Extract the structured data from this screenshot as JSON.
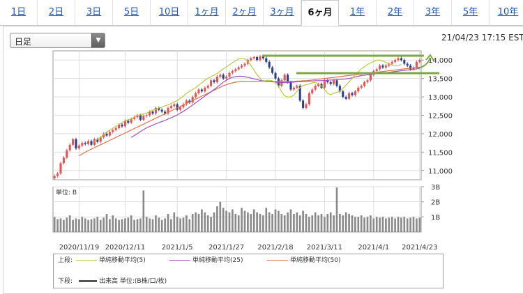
{
  "tabs": [
    {
      "label": "1日",
      "active": false
    },
    {
      "label": "2日",
      "active": false
    },
    {
      "label": "3日",
      "active": false
    },
    {
      "label": "5日",
      "active": false
    },
    {
      "label": "10日",
      "active": false
    },
    {
      "label": "1ヶ月",
      "active": false
    },
    {
      "label": "2ヶ月",
      "active": false
    },
    {
      "label": "3ヶ月",
      "active": false
    },
    {
      "label": "6ヶ月",
      "active": true
    },
    {
      "label": "1年",
      "active": false
    },
    {
      "label": "2年",
      "active": false
    },
    {
      "label": "3年",
      "active": false
    },
    {
      "label": "5年",
      "active": false
    },
    {
      "label": "10年",
      "active": false
    }
  ],
  "controls": {
    "interval_label": "日足",
    "timestamp": "21/04/23 17:15 EST"
  },
  "colors": {
    "up": "#e8524f",
    "down": "#2b3f8c",
    "ma5": "#b7c93c",
    "ma25": "#a24ec4",
    "ma50": "#e0714a",
    "volume": "#8a8a8a",
    "annotation": "#7ea844"
  },
  "legend": {
    "top_label": "上段:",
    "ma5": "単純移動平均(5)",
    "ma25": "単純移動平均(25)",
    "ma50": "単純移動平均(50)",
    "bottom_label": "下段:",
    "volume": "出来高 単位:(B株/口/枚)"
  },
  "chart_data": [
    {
      "type": "candlestick",
      "name": "price",
      "ylim": [
        10750,
        14250
      ],
      "yticks": [
        11000,
        11500,
        12000,
        12500,
        13000,
        13500,
        14000
      ],
      "ytick_labels": [
        "11,000",
        "11,500",
        "12,000",
        "12,500",
        "13,000",
        "13,500",
        "14,000"
      ],
      "xtick_labels": [
        "2020/11/19",
        "2020/12/11",
        "2021/1/5",
        "2021/1/27",
        "2021/2/18",
        "2021/3/11",
        "2021/4/1",
        "2021/4/23"
      ],
      "xtick_index": [
        8,
        23,
        40,
        56,
        72,
        88,
        104,
        119
      ],
      "close": [
        10850,
        10920,
        11200,
        11350,
        11550,
        11700,
        11850,
        11600,
        11680,
        11750,
        11720,
        11800,
        11700,
        11850,
        11780,
        11900,
        12000,
        11950,
        12050,
        12100,
        12150,
        12250,
        12200,
        12350,
        12300,
        12400,
        12450,
        12500,
        12380,
        12480,
        12500,
        12600,
        12550,
        12700,
        12650,
        12600,
        12550,
        12700,
        12750,
        12800,
        12650,
        12720,
        12800,
        12900,
        12850,
        13000,
        13100,
        13200,
        13150,
        13250,
        13300,
        13450,
        13400,
        13550,
        13600,
        13500,
        13550,
        13650,
        13700,
        13750,
        13800,
        13850,
        13900,
        14000,
        14050,
        14080,
        14000,
        14100,
        14050,
        13950,
        13800,
        13650,
        13500,
        13300,
        13450,
        13600,
        13400,
        13200,
        13250,
        13300,
        12900,
        12700,
        12800,
        13100,
        13200,
        13300,
        13350,
        13250,
        13450,
        13400,
        13350,
        13450,
        13300,
        13150,
        13000,
        12950,
        13100,
        13050,
        13150,
        13250,
        13300,
        13400,
        13450,
        13600,
        13700,
        13750,
        13850,
        13800,
        13850,
        13900,
        13950,
        14000,
        14050,
        14000,
        13900,
        13850,
        13750,
        13800,
        13950,
        14000
      ],
      "ma5_start": 13,
      "ma5": [
        11790,
        11850,
        11900,
        11980,
        12050,
        12100,
        12150,
        12200,
        12250,
        12300,
        12350,
        12380,
        12400,
        12450,
        12500,
        12510,
        12540,
        12560,
        12600,
        12640,
        12660,
        12700,
        12720,
        12760,
        12780,
        12820,
        12870,
        12900,
        12960,
        13020,
        13100,
        13150,
        13200,
        13250,
        13320,
        13380,
        13450,
        13500,
        13550,
        13590,
        13640,
        13700,
        13760,
        13810,
        13870,
        13930,
        13980,
        14030,
        14050,
        14030,
        13960,
        13860,
        13730,
        13600,
        13500,
        13420,
        13450,
        13450,
        13440,
        13380,
        13300,
        13140,
        13030,
        13000,
        13000,
        13050,
        13150,
        13250,
        13310,
        13330,
        13350,
        13380,
        13400,
        13350,
        13300,
        13200,
        13100,
        13060,
        13100,
        13120,
        13160,
        13230,
        13320,
        13410,
        13500,
        13600,
        13680,
        13760,
        13820,
        13880,
        13920,
        13960,
        13990,
        14000,
        13970,
        13940,
        13890,
        13860,
        13840,
        13850,
        13880
      ],
      "ma25_start": 25,
      "ma25": [
        11900,
        11950,
        12000,
        12060,
        12110,
        12160,
        12200,
        12230,
        12270,
        12300,
        12330,
        12360,
        12400,
        12430,
        12470,
        12510,
        12560,
        12610,
        12660,
        12720,
        12780,
        12840,
        12900,
        12960,
        13020,
        13080,
        13140,
        13200,
        13260,
        13330,
        13400,
        13450,
        13500,
        13530,
        13550,
        13560,
        13560,
        13550,
        13530,
        13510,
        13490,
        13470,
        13450,
        13440,
        13430,
        13420,
        13410,
        13400,
        13390,
        13390,
        13390,
        13390,
        13400,
        13400,
        13410,
        13410,
        13420,
        13420,
        13430,
        13430,
        13440,
        13440,
        13440,
        13450,
        13450,
        13460,
        13460,
        13470,
        13470,
        13480,
        13490,
        13500,
        13520,
        13540,
        13560,
        13580,
        13590,
        13600,
        13610,
        13620,
        13630,
        13640,
        13650,
        13660,
        13670,
        13680,
        13690,
        13700,
        13710,
        13720,
        13730,
        13740,
        13750,
        13760,
        13770
      ],
      "ma50_start": 8,
      "ma50": [
        11400,
        11450,
        11500,
        11540,
        11580,
        11620,
        11660,
        11700,
        11740,
        11780,
        11820,
        11860,
        11900,
        11940,
        11980,
        12020,
        12060,
        12100,
        12140,
        12180,
        12220,
        12260,
        12300,
        12340,
        12380,
        12420,
        12460,
        12500,
        12540,
        12580,
        12620,
        12660,
        12700,
        12740,
        12780,
        12820,
        12860,
        12900,
        12940,
        12980,
        13020,
        13060,
        13100,
        13140,
        13180,
        13220,
        13260,
        13300,
        13330,
        13360,
        13380,
        13400,
        13410,
        13420,
        13420,
        13420,
        13420,
        13420,
        13420,
        13420,
        13420,
        13420,
        13420,
        13420,
        13420,
        13420,
        13420,
        13420,
        13420,
        13420,
        13420,
        13430,
        13430,
        13440,
        13440,
        13450,
        13460,
        13470,
        13480,
        13490,
        13500,
        13510,
        13520,
        13530,
        13540,
        13550,
        13560,
        13570,
        13580,
        13590,
        13600,
        13610,
        13620,
        13630,
        13640,
        13650,
        13660,
        13670,
        13680,
        13690,
        13700,
        13710,
        13720,
        13730,
        13740,
        13750,
        13760,
        13770,
        13780,
        13790,
        13800,
        13810
      ]
    },
    {
      "type": "bar",
      "name": "volume",
      "ylim": [
        0,
        3
      ],
      "yticks": [
        1,
        2,
        3
      ],
      "ytick_labels": [
        "1B",
        "2B",
        "3B"
      ],
      "ylabel": "単位: B",
      "values": [
        1.0,
        0.85,
        0.9,
        0.8,
        0.95,
        1.1,
        0.8,
        0.9,
        0.85,
        1.0,
        0.9,
        0.8,
        0.85,
        0.9,
        1.0,
        0.8,
        0.95,
        1.2,
        0.85,
        1.1,
        0.9,
        0.8,
        0.85,
        0.9,
        0.95,
        1.1,
        0.8,
        0.85,
        0.9,
        2.75,
        1.0,
        0.9,
        0.85,
        1.1,
        0.95,
        0.8,
        0.9,
        1.2,
        0.85,
        1.3,
        1.0,
        0.9,
        0.95,
        1.1,
        0.85,
        1.2,
        1.3,
        1.2,
        1.5,
        1.3,
        1.1,
        1.0,
        1.3,
        1.7,
        2.0,
        1.6,
        1.4,
        1.3,
        1.5,
        1.2,
        1.1,
        1.6,
        1.4,
        1.3,
        1.2,
        1.5,
        1.3,
        1.2,
        1.1,
        1.6,
        1.3,
        1.2,
        1.5,
        1.4,
        1.2,
        1.1,
        1.3,
        1.5,
        1.2,
        1.3,
        1.1,
        1.4,
        1.2,
        1.0,
        1.1,
        1.3,
        1.1,
        1.2,
        1.0,
        1.2,
        1.3,
        1.1,
        2.95,
        1.2,
        1.1,
        1.3,
        1.2,
        1.1,
        1.0,
        1.0,
        1.1,
        0.95,
        1.0,
        1.1,
        0.9,
        1.0,
        0.95,
        1.0,
        0.9,
        0.95,
        1.0,
        0.9,
        1.0,
        0.95,
        1.0,
        0.9,
        0.95,
        1.0,
        0.9,
        0.95
      ]
    }
  ]
}
